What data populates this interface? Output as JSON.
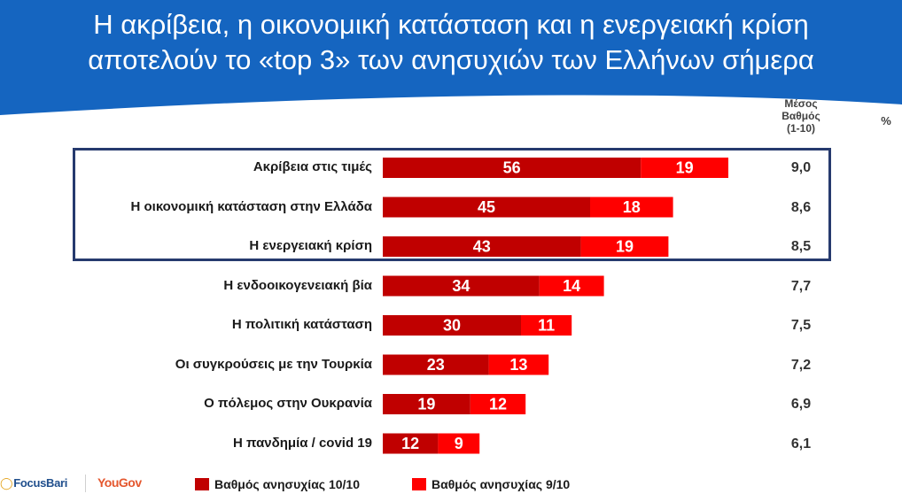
{
  "header": {
    "title_line1": "Η ακρίβεια, η οικονομική κατάσταση και η ενεργειακή κρίση",
    "title_line2": "αποτελούν το «top 3» των ανησυχιών των Ελλήνων σήμερα",
    "bg_color": "#1565c0"
  },
  "columns": {
    "mean_line1": "Μέσος",
    "mean_line2": "Βαθμός",
    "mean_line3": "(1-10)",
    "percent": "%"
  },
  "chart_data": {
    "type": "bar",
    "orientation": "horizontal",
    "stacked": true,
    "categories": [
      "Ακρίβεια στις τιμές",
      "Η οικονομική κατάσταση στην Ελλάδα",
      "Η ενεργειακή κρίση",
      "Η ενδοοικογενειακή βία",
      "Η πολιτική κατάσταση",
      "Οι συγκρούσεις με την Τουρκία",
      "Ο πόλεμος στην Ουκρανία",
      "Η πανδημία / covid 19"
    ],
    "series": [
      {
        "name": "Βαθμός ανησυχίας 10/10",
        "color": "#c00000",
        "values": [
          56,
          45,
          43,
          34,
          30,
          23,
          19,
          12
        ]
      },
      {
        "name": "Βαθμός ανησυχίας 9/10",
        "color": "#ff0000",
        "values": [
          19,
          18,
          19,
          14,
          11,
          13,
          12,
          9
        ]
      }
    ],
    "mean_scores": [
      "9,0",
      "8,6",
      "8,5",
      "7,7",
      "7,5",
      "7,2",
      "6,9",
      "6,1"
    ],
    "xlim": [
      0,
      100
    ],
    "highlighted_categories": 3
  },
  "legend": {
    "item1": "Βαθμός ανησυχίας 10/10",
    "item2": "Βαθμός ανησυχίας 9/10"
  },
  "logos": {
    "focus": "FocusBari",
    "yougov": "YouGov"
  }
}
